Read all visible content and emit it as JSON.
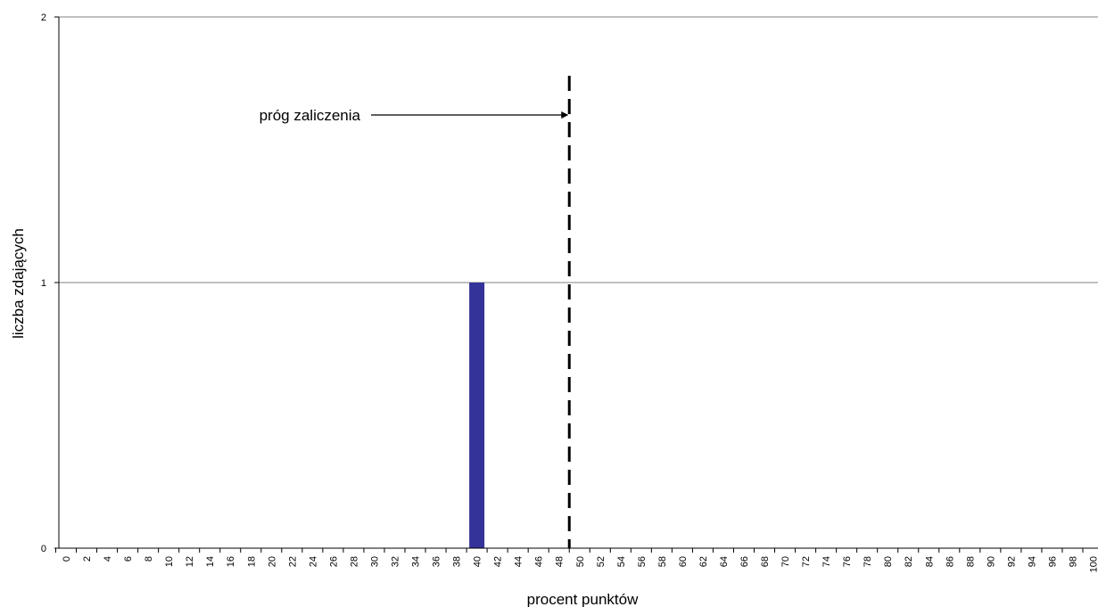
{
  "chart_data": {
    "type": "bar",
    "title": "",
    "xlabel": "procent punktów",
    "ylabel": "liczba zdających",
    "ylim": [
      0,
      2
    ],
    "yticks": [
      0,
      1,
      2
    ],
    "grid": true,
    "categories": [
      "0",
      "2",
      "4",
      "6",
      "8",
      "10",
      "12",
      "14",
      "16",
      "18",
      "20",
      "22",
      "24",
      "26",
      "28",
      "30",
      "32",
      "34",
      "36",
      "38",
      "40",
      "42",
      "44",
      "46",
      "48",
      "50",
      "52",
      "54",
      "56",
      "58",
      "60",
      "62",
      "64",
      "66",
      "68",
      "70",
      "72",
      "74",
      "76",
      "78",
      "80",
      "82",
      "84",
      "86",
      "88",
      "90",
      "92",
      "94",
      "96",
      "98",
      "100"
    ],
    "values": [
      0,
      0,
      0,
      0,
      0,
      0,
      0,
      0,
      0,
      0,
      0,
      0,
      0,
      0,
      0,
      0,
      0,
      0,
      0,
      0,
      1,
      0,
      0,
      0,
      0,
      0,
      0,
      0,
      0,
      0,
      0,
      0,
      0,
      0,
      0,
      0,
      0,
      0,
      0,
      0,
      0,
      0,
      0,
      0,
      0,
      0,
      0,
      0,
      0,
      0,
      0
    ],
    "bar_color": "#333399",
    "annotations": [
      {
        "text": "próg zaliczenia",
        "type": "threshold-line",
        "x": 49,
        "style": "dashed",
        "color": "#000000"
      }
    ]
  }
}
